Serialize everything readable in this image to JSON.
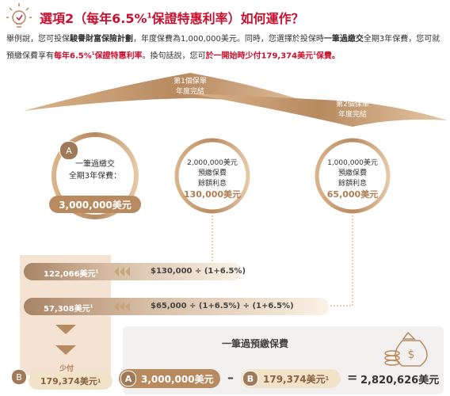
{
  "header": {
    "title": [
      "選項2（每年6.5%",
      "1",
      "保證特惠利率）如何運作？"
    ]
  },
  "paragraph": [
    "舉例說，您可投保",
    "駿譽財富保險計劃",
    "，年度保費為1,000,000美元。同時，您選擇於投保時",
    "一筆過繳交",
    "全期3年保費，您可就預繳保費享有",
    "每年6.5%",
    "1",
    "保證特惠利率",
    "。換句話說，您可",
    "於一開始時少付179,374美元",
    "1",
    "保費。"
  ],
  "arcs": [
    {
      "lines": [
        "第1個保單",
        "年度完結"
      ]
    },
    {
      "lines": [
        "第2個保單",
        "年度完結"
      ]
    }
  ],
  "circles": [
    {
      "badge": "A",
      "lines": [
        "一筆過繳交",
        "全期3年保費："
      ],
      "amount": "3,000,000美元"
    },
    {
      "lines": [
        "2,000,000美元",
        "預繳保費",
        "餘額利息"
      ],
      "amount": "130,000美元"
    },
    {
      "lines": [
        "1,000,000美元",
        "預繳保費",
        "餘額利息"
      ],
      "amount": "65,000美元"
    }
  ],
  "rows": [
    {
      "value": "122,066美元",
      "note": "1",
      "formula": "$130,000 ÷ (1+6.5%)"
    },
    {
      "value": "57,308美元",
      "note": "1",
      "formula": "$65,000 ÷ (1+6.5%) ÷ (1+6.5%)"
    }
  ],
  "summary": {
    "title": "一筆過預繳保費",
    "left": {
      "badge": "B",
      "label": "少付",
      "value": "179,374美元",
      "note": "1"
    },
    "a": {
      "badge": "A",
      "value": "3,000,000美元"
    },
    "minus": "–",
    "b": {
      "badge": "B",
      "value": "179,374美元",
      "note": "1"
    },
    "equals": "=",
    "result": "2,820,626美元"
  }
}
